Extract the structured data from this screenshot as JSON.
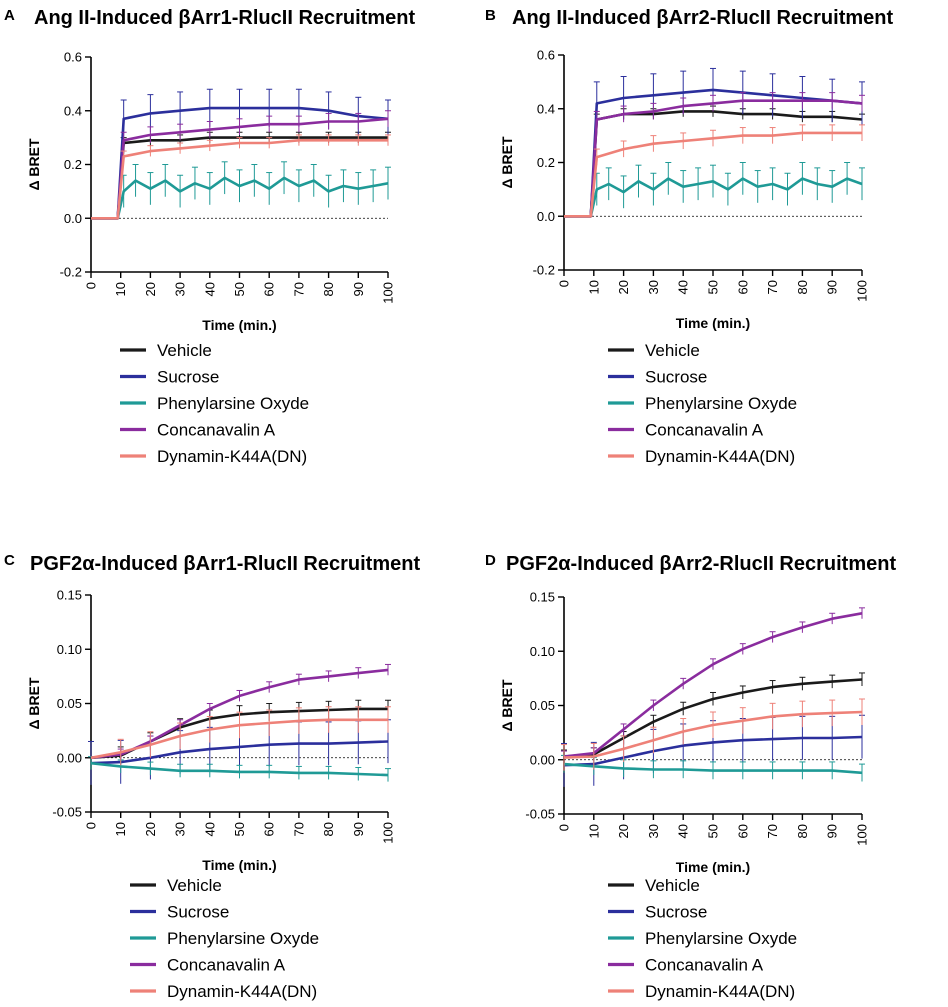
{
  "colors": {
    "Vehicle": "#1a1a1a",
    "Sucrose": "#2b2f9c",
    "Phenylarsine Oxyde": "#1f9a96",
    "Concanavalin A": "#8a2c9e",
    "Dynamin-K44A(DN)": "#ee8178"
  },
  "chart_data": [
    {
      "type": "line",
      "panel": "A",
      "title": "Ang II-Induced βArr1-RlucII Recruitment",
      "xlabel": "Time (min.)",
      "ylabel": "Δ BRET",
      "xlim": [
        0,
        100
      ],
      "ylim": [
        -0.2,
        0.6
      ],
      "xticks": [
        0,
        10,
        20,
        30,
        40,
        50,
        60,
        70,
        80,
        90,
        100
      ],
      "yticks": [
        -0.2,
        0.0,
        0.2,
        0.4,
        0.6
      ],
      "ytick_labels": [
        "-0.2",
        "0.0",
        "0.2",
        "0.4",
        "0.6"
      ],
      "legend": [
        "Vehicle",
        "Sucrose",
        "Phenylarsine Oxyde",
        "Concanavalin A",
        "Dynamin-K44A(DN)"
      ],
      "series": [
        {
          "name": "Vehicle",
          "x": [
            0,
            9,
            11,
            20,
            30,
            40,
            50,
            60,
            70,
            80,
            90,
            100
          ],
          "y": [
            0.0,
            0.0,
            0.28,
            0.29,
            0.29,
            0.3,
            0.3,
            0.3,
            0.3,
            0.3,
            0.3,
            0.3
          ],
          "err": 0.02
        },
        {
          "name": "Sucrose",
          "x": [
            0,
            9,
            11,
            20,
            30,
            40,
            50,
            60,
            70,
            80,
            90,
            100
          ],
          "y": [
            0.0,
            0.0,
            0.37,
            0.39,
            0.4,
            0.41,
            0.41,
            0.41,
            0.41,
            0.4,
            0.38,
            0.37
          ],
          "err": 0.07
        },
        {
          "name": "Phenylarsine Oxyde",
          "x": [
            0,
            9,
            11,
            15,
            20,
            25,
            30,
            35,
            40,
            45,
            50,
            55,
            60,
            65,
            70,
            75,
            80,
            85,
            90,
            95,
            100
          ],
          "y": [
            0.0,
            0.0,
            0.1,
            0.14,
            0.11,
            0.14,
            0.1,
            0.13,
            0.11,
            0.15,
            0.12,
            0.14,
            0.11,
            0.15,
            0.12,
            0.14,
            0.1,
            0.12,
            0.11,
            0.12,
            0.13
          ],
          "err": 0.06
        },
        {
          "name": "Concanavalin A",
          "x": [
            0,
            9,
            11,
            20,
            30,
            40,
            50,
            60,
            70,
            80,
            90,
            100
          ],
          "y": [
            0.0,
            0.0,
            0.29,
            0.31,
            0.32,
            0.33,
            0.34,
            0.35,
            0.35,
            0.36,
            0.36,
            0.37
          ],
          "err": 0.03
        },
        {
          "name": "Dynamin-K44A(DN)",
          "x": [
            0,
            9,
            11,
            20,
            30,
            40,
            50,
            60,
            70,
            80,
            90,
            100
          ],
          "y": [
            0.0,
            0.0,
            0.23,
            0.25,
            0.26,
            0.27,
            0.28,
            0.28,
            0.29,
            0.29,
            0.29,
            0.29
          ],
          "err": 0.02
        }
      ]
    },
    {
      "type": "line",
      "panel": "B",
      "title": "Ang II-Induced βArr2-RlucII Recruitment",
      "xlabel": "Time (min.)",
      "ylabel": "Δ BRET",
      "xlim": [
        0,
        100
      ],
      "ylim": [
        -0.2,
        0.6
      ],
      "xticks": [
        0,
        10,
        20,
        30,
        40,
        50,
        60,
        70,
        80,
        90,
        100
      ],
      "yticks": [
        -0.2,
        0.0,
        0.2,
        0.4,
        0.6
      ],
      "ytick_labels": [
        "-0.2",
        "0.0",
        "0.2",
        "0.4",
        "0.6"
      ],
      "legend": [
        "Vehicle",
        "Sucrose",
        "Phenylarsine Oxyde",
        "Concanavalin A",
        "Dynamin-K44A(DN)"
      ],
      "series": [
        {
          "name": "Vehicle",
          "x": [
            0,
            9,
            11,
            20,
            30,
            40,
            50,
            60,
            70,
            80,
            90,
            100
          ],
          "y": [
            0.0,
            0.0,
            0.36,
            0.38,
            0.38,
            0.39,
            0.39,
            0.38,
            0.38,
            0.37,
            0.37,
            0.36
          ],
          "err": 0.02
        },
        {
          "name": "Sucrose",
          "x": [
            0,
            9,
            11,
            20,
            30,
            40,
            50,
            60,
            70,
            80,
            90,
            100
          ],
          "y": [
            0.0,
            0.0,
            0.42,
            0.44,
            0.45,
            0.46,
            0.47,
            0.46,
            0.45,
            0.44,
            0.43,
            0.42
          ],
          "err": 0.08
        },
        {
          "name": "Phenylarsine Oxyde",
          "x": [
            0,
            9,
            11,
            15,
            20,
            25,
            30,
            35,
            40,
            45,
            50,
            55,
            60,
            65,
            70,
            75,
            80,
            85,
            90,
            95,
            100
          ],
          "y": [
            0.0,
            0.0,
            0.1,
            0.12,
            0.09,
            0.13,
            0.1,
            0.14,
            0.11,
            0.12,
            0.13,
            0.1,
            0.14,
            0.11,
            0.12,
            0.1,
            0.14,
            0.12,
            0.11,
            0.14,
            0.12
          ],
          "err": 0.06
        },
        {
          "name": "Concanavalin A",
          "x": [
            0,
            9,
            11,
            20,
            30,
            40,
            50,
            60,
            70,
            80,
            90,
            100
          ],
          "y": [
            0.0,
            0.0,
            0.36,
            0.38,
            0.39,
            0.41,
            0.42,
            0.43,
            0.43,
            0.43,
            0.43,
            0.42
          ],
          "err": 0.03
        },
        {
          "name": "Dynamin-K44A(DN)",
          "x": [
            0,
            9,
            11,
            20,
            30,
            40,
            50,
            60,
            70,
            80,
            90,
            100
          ],
          "y": [
            0.0,
            0.0,
            0.22,
            0.25,
            0.27,
            0.28,
            0.29,
            0.3,
            0.3,
            0.31,
            0.31,
            0.31
          ],
          "err": 0.03
        }
      ]
    },
    {
      "type": "line",
      "panel": "C",
      "title": "PGF2α-Induced βArr1-RlucII Recruitment",
      "xlabel": "Time (min.)",
      "ylabel": "Δ BRET",
      "xlim": [
        0,
        100
      ],
      "ylim": [
        -0.05,
        0.15
      ],
      "xticks": [
        0,
        10,
        20,
        30,
        40,
        50,
        60,
        70,
        80,
        90,
        100
      ],
      "yticks": [
        -0.05,
        0.0,
        0.05,
        0.1,
        0.15
      ],
      "ytick_labels": [
        "-0.05",
        "0.00",
        "0.05",
        "0.10",
        "0.15"
      ],
      "legend": [
        "Vehicle",
        "Sucrose",
        "Phenylarsine Oxyde",
        "Concanavalin A",
        "Dynamin-K44A(DN)"
      ],
      "series": [
        {
          "name": "Vehicle",
          "x": [
            0,
            10,
            20,
            30,
            40,
            50,
            60,
            70,
            80,
            90,
            100
          ],
          "y": [
            0.0,
            0.002,
            0.015,
            0.028,
            0.036,
            0.04,
            0.042,
            0.043,
            0.044,
            0.045,
            0.045
          ],
          "err": 0.008
        },
        {
          "name": "Sucrose",
          "x": [
            0,
            10,
            20,
            30,
            40,
            50,
            60,
            70,
            80,
            90,
            100
          ],
          "y": [
            -0.005,
            -0.004,
            0.0,
            0.005,
            0.008,
            0.01,
            0.012,
            0.013,
            0.013,
            0.014,
            0.015
          ],
          "err": 0.02
        },
        {
          "name": "Phenylarsine Oxyde",
          "x": [
            0,
            10,
            20,
            30,
            40,
            50,
            60,
            70,
            80,
            90,
            100
          ],
          "y": [
            -0.005,
            -0.008,
            -0.01,
            -0.012,
            -0.012,
            -0.013,
            -0.013,
            -0.014,
            -0.014,
            -0.015,
            -0.016
          ],
          "err": 0.006
        },
        {
          "name": "Concanavalin A",
          "x": [
            0,
            10,
            20,
            30,
            40,
            50,
            60,
            70,
            80,
            90,
            100
          ],
          "y": [
            0.0,
            0.003,
            0.015,
            0.03,
            0.045,
            0.057,
            0.065,
            0.072,
            0.075,
            0.078,
            0.081
          ],
          "err": 0.005
        },
        {
          "name": "Dynamin-K44A(DN)",
          "x": [
            0,
            10,
            20,
            30,
            40,
            50,
            60,
            70,
            80,
            90,
            100
          ],
          "y": [
            0.0,
            0.005,
            0.012,
            0.02,
            0.026,
            0.03,
            0.032,
            0.034,
            0.035,
            0.035,
            0.035
          ],
          "err": 0.012
        }
      ]
    },
    {
      "type": "line",
      "panel": "D",
      "title": "PGF2α-Induced βArr2-RlucII Recruitment",
      "xlabel": "Time (min.)",
      "ylabel": "Δ BRET",
      "xlim": [
        0,
        100
      ],
      "ylim": [
        -0.05,
        0.15
      ],
      "xticks": [
        0,
        10,
        20,
        30,
        40,
        50,
        60,
        70,
        80,
        90,
        100
      ],
      "yticks": [
        -0.05,
        0.0,
        0.05,
        0.1,
        0.15
      ],
      "ytick_labels": [
        "-0.05",
        "0.00",
        "0.05",
        "0.10",
        "0.15"
      ],
      "legend": [
        "Vehicle",
        "Sucrose",
        "Phenylarsine Oxyde",
        "Concanavalin A",
        "Dynamin-K44A(DN)"
      ],
      "series": [
        {
          "name": "Vehicle",
          "x": [
            0,
            10,
            20,
            30,
            40,
            50,
            60,
            70,
            80,
            90,
            100
          ],
          "y": [
            0.003,
            0.005,
            0.02,
            0.035,
            0.047,
            0.056,
            0.062,
            0.067,
            0.07,
            0.072,
            0.074
          ],
          "err": 0.006
        },
        {
          "name": "Sucrose",
          "x": [
            0,
            10,
            20,
            30,
            40,
            50,
            60,
            70,
            80,
            90,
            100
          ],
          "y": [
            -0.005,
            -0.004,
            0.002,
            0.008,
            0.013,
            0.016,
            0.018,
            0.019,
            0.02,
            0.02,
            0.021
          ],
          "err": 0.02
        },
        {
          "name": "Phenylarsine Oxyde",
          "x": [
            0,
            10,
            20,
            30,
            40,
            50,
            60,
            70,
            80,
            90,
            100
          ],
          "y": [
            -0.004,
            -0.006,
            -0.008,
            -0.009,
            -0.009,
            -0.01,
            -0.01,
            -0.01,
            -0.01,
            -0.01,
            -0.012
          ],
          "err": 0.008
        },
        {
          "name": "Concanavalin A",
          "x": [
            0,
            10,
            20,
            30,
            40,
            50,
            60,
            70,
            80,
            90,
            100
          ],
          "y": [
            0.003,
            0.006,
            0.028,
            0.05,
            0.07,
            0.088,
            0.102,
            0.113,
            0.122,
            0.13,
            0.135
          ],
          "err": 0.005
        },
        {
          "name": "Dynamin-K44A(DN)",
          "x": [
            0,
            10,
            20,
            30,
            40,
            50,
            60,
            70,
            80,
            90,
            100
          ],
          "y": [
            0.002,
            0.003,
            0.01,
            0.018,
            0.026,
            0.032,
            0.036,
            0.04,
            0.042,
            0.043,
            0.044
          ],
          "err": 0.012
        }
      ]
    }
  ]
}
